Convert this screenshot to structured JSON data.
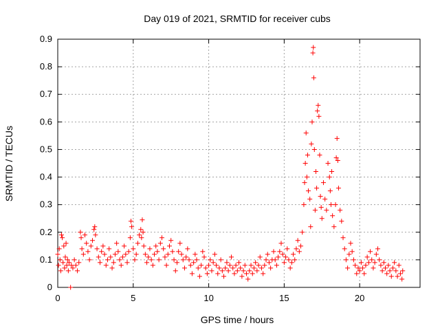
{
  "chart_data": {
    "type": "scatter",
    "title": "Day 019 of 2021, SRMTID for receiver cubs",
    "xlabel": "GPS time / hours",
    "ylabel": "SRMTID / TECUs",
    "xlim": [
      0,
      24
    ],
    "ylim": [
      0,
      0.9
    ],
    "xticks": [
      0,
      5,
      10,
      15,
      20
    ],
    "yticks": [
      0,
      0.1,
      0.2,
      0.3,
      0.4,
      0.5,
      0.6,
      0.7,
      0.8,
      0.9
    ],
    "xtick_labels": [
      "0",
      "5",
      "10",
      "15",
      "20"
    ],
    "ytick_labels": [
      "0",
      "0.1",
      "0.2",
      "0.3",
      "0.4",
      "0.5",
      "0.6",
      "0.7",
      "0.8",
      "0.9"
    ],
    "grid": true,
    "marker": "+",
    "color": "#ff0000",
    "series": [
      {
        "name": "SRMTID",
        "points": [
          [
            0.0,
            0.12
          ],
          [
            0.05,
            0.08
          ],
          [
            0.1,
            0.14
          ],
          [
            0.15,
            0.1
          ],
          [
            0.2,
            0.06
          ],
          [
            0.25,
            0.19
          ],
          [
            0.3,
            0.18
          ],
          [
            0.35,
            0.09
          ],
          [
            0.4,
            0.15
          ],
          [
            0.45,
            0.07
          ],
          [
            0.5,
            0.11
          ],
          [
            0.55,
            0.16
          ],
          [
            0.6,
            0.08
          ],
          [
            0.65,
            0.1
          ],
          [
            0.7,
            0.06
          ],
          [
            0.75,
            0.09
          ],
          [
            0.85,
            0.0
          ],
          [
            0.9,
            0.08
          ],
          [
            1.0,
            0.07
          ],
          [
            1.1,
            0.1
          ],
          [
            1.2,
            0.08
          ],
          [
            1.3,
            0.06
          ],
          [
            1.4,
            0.09
          ],
          [
            1.5,
            0.2
          ],
          [
            1.55,
            0.18
          ],
          [
            1.6,
            0.14
          ],
          [
            1.7,
            0.12
          ],
          [
            1.8,
            0.19
          ],
          [
            1.9,
            0.16
          ],
          [
            2.0,
            0.13
          ],
          [
            2.1,
            0.1
          ],
          [
            2.2,
            0.15
          ],
          [
            2.3,
            0.17
          ],
          [
            2.4,
            0.21
          ],
          [
            2.45,
            0.22
          ],
          [
            2.5,
            0.19
          ],
          [
            2.6,
            0.14
          ],
          [
            2.7,
            0.11
          ],
          [
            2.8,
            0.09
          ],
          [
            2.9,
            0.13
          ],
          [
            3.0,
            0.15
          ],
          [
            3.1,
            0.12
          ],
          [
            3.2,
            0.08
          ],
          [
            3.3,
            0.1
          ],
          [
            3.4,
            0.14
          ],
          [
            3.5,
            0.11
          ],
          [
            3.6,
            0.07
          ],
          [
            3.7,
            0.09
          ],
          [
            3.8,
            0.12
          ],
          [
            3.9,
            0.16
          ],
          [
            4.0,
            0.13
          ],
          [
            4.1,
            0.1
          ],
          [
            4.2,
            0.08
          ],
          [
            4.3,
            0.11
          ],
          [
            4.4,
            0.15
          ],
          [
            4.5,
            0.12
          ],
          [
            4.6,
            0.09
          ],
          [
            4.7,
            0.13
          ],
          [
            4.8,
            0.18
          ],
          [
            4.85,
            0.24
          ],
          [
            4.9,
            0.22
          ],
          [
            5.0,
            0.14
          ],
          [
            5.1,
            0.1
          ],
          [
            5.2,
            0.12
          ],
          [
            5.3,
            0.16
          ],
          [
            5.4,
            0.19
          ],
          [
            5.5,
            0.21
          ],
          [
            5.55,
            0.18
          ],
          [
            5.6,
            0.245
          ],
          [
            5.65,
            0.2
          ],
          [
            5.7,
            0.15
          ],
          [
            5.8,
            0.12
          ],
          [
            5.9,
            0.09
          ],
          [
            6.0,
            0.11
          ],
          [
            6.1,
            0.14
          ],
          [
            6.2,
            0.1
          ],
          [
            6.3,
            0.08
          ],
          [
            6.4,
            0.12
          ],
          [
            6.5,
            0.15
          ],
          [
            6.6,
            0.13
          ],
          [
            6.7,
            0.1
          ],
          [
            6.8,
            0.16
          ],
          [
            6.9,
            0.18
          ],
          [
            7.0,
            0.14
          ],
          [
            7.1,
            0.11
          ],
          [
            7.2,
            0.08
          ],
          [
            7.3,
            0.12
          ],
          [
            7.4,
            0.15
          ],
          [
            7.5,
            0.17
          ],
          [
            7.6,
            0.13
          ],
          [
            7.7,
            0.1
          ],
          [
            7.8,
            0.06
          ],
          [
            7.9,
            0.09
          ],
          [
            8.0,
            0.13
          ],
          [
            8.1,
            0.16
          ],
          [
            8.2,
            0.12
          ],
          [
            8.3,
            0.1
          ],
          [
            8.4,
            0.07
          ],
          [
            8.5,
            0.11
          ],
          [
            8.6,
            0.14
          ],
          [
            8.7,
            0.1
          ],
          [
            8.8,
            0.08
          ],
          [
            8.9,
            0.05
          ],
          [
            9.0,
            0.09
          ],
          [
            9.1,
            0.12
          ],
          [
            9.2,
            0.1
          ],
          [
            9.3,
            0.07
          ],
          [
            9.4,
            0.04
          ],
          [
            9.5,
            0.08
          ],
          [
            9.6,
            0.13
          ],
          [
            9.7,
            0.11
          ],
          [
            9.8,
            0.07
          ],
          [
            9.9,
            0.05
          ],
          [
            10.0,
            0.08
          ],
          [
            10.1,
            0.1
          ],
          [
            10.2,
            0.06
          ],
          [
            10.3,
            0.09
          ],
          [
            10.4,
            0.12
          ],
          [
            10.5,
            0.08
          ],
          [
            10.6,
            0.05
          ],
          [
            10.7,
            0.07
          ],
          [
            10.8,
            0.1
          ],
          [
            10.9,
            0.06
          ],
          [
            11.0,
            0.04
          ],
          [
            11.1,
            0.07
          ],
          [
            11.2,
            0.09
          ],
          [
            11.3,
            0.06
          ],
          [
            11.4,
            0.08
          ],
          [
            11.5,
            0.11
          ],
          [
            11.6,
            0.07
          ],
          [
            11.7,
            0.05
          ],
          [
            11.8,
            0.08
          ],
          [
            11.9,
            0.06
          ],
          [
            12.0,
            0.09
          ],
          [
            12.1,
            0.07
          ],
          [
            12.2,
            0.04
          ],
          [
            12.3,
            0.06
          ],
          [
            12.4,
            0.08
          ],
          [
            12.5,
            0.05
          ],
          [
            12.6,
            0.03
          ],
          [
            12.7,
            0.06
          ],
          [
            12.8,
            0.08
          ],
          [
            12.9,
            0.05
          ],
          [
            13.0,
            0.07
          ],
          [
            13.1,
            0.09
          ],
          [
            13.2,
            0.06
          ],
          [
            13.3,
            0.08
          ],
          [
            13.4,
            0.11
          ],
          [
            13.5,
            0.07
          ],
          [
            13.6,
            0.05
          ],
          [
            13.7,
            0.08
          ],
          [
            13.8,
            0.1
          ],
          [
            13.9,
            0.12
          ],
          [
            14.0,
            0.09
          ],
          [
            14.1,
            0.07
          ],
          [
            14.2,
            0.1
          ],
          [
            14.3,
            0.13
          ],
          [
            14.4,
            0.1
          ],
          [
            14.5,
            0.08
          ],
          [
            14.6,
            0.11
          ],
          [
            14.7,
            0.13
          ],
          [
            14.8,
            0.16
          ],
          [
            14.9,
            0.12
          ],
          [
            15.0,
            0.09
          ],
          [
            15.1,
            0.11
          ],
          [
            15.2,
            0.14
          ],
          [
            15.3,
            0.1
          ],
          [
            15.4,
            0.07
          ],
          [
            15.5,
            0.09
          ],
          [
            15.6,
            0.12
          ],
          [
            15.7,
            0.1
          ],
          [
            15.8,
            0.14
          ],
          [
            15.9,
            0.17
          ],
          [
            16.0,
            0.13
          ],
          [
            16.1,
            0.15
          ],
          [
            16.2,
            0.2
          ],
          [
            16.3,
            0.3
          ],
          [
            16.35,
            0.38
          ],
          [
            16.4,
            0.45
          ],
          [
            16.45,
            0.56
          ],
          [
            16.5,
            0.4
          ],
          [
            16.55,
            0.48
          ],
          [
            16.6,
            0.35
          ],
          [
            16.7,
            0.32
          ],
          [
            16.75,
            0.22
          ],
          [
            16.8,
            0.52
          ],
          [
            16.85,
            0.6
          ],
          [
            16.9,
            0.85
          ],
          [
            16.93,
            0.87
          ],
          [
            16.96,
            0.76
          ],
          [
            17.0,
            0.5
          ],
          [
            17.05,
            0.28
          ],
          [
            17.1,
            0.42
          ],
          [
            17.15,
            0.36
          ],
          [
            17.2,
            0.64
          ],
          [
            17.25,
            0.66
          ],
          [
            17.3,
            0.62
          ],
          [
            17.35,
            0.48
          ],
          [
            17.4,
            0.33
          ],
          [
            17.45,
            0.29
          ],
          [
            17.5,
            0.25
          ],
          [
            17.6,
            0.38
          ],
          [
            17.7,
            0.32
          ],
          [
            17.8,
            0.28
          ],
          [
            17.9,
            0.45
          ],
          [
            18.0,
            0.4
          ],
          [
            18.05,
            0.35
          ],
          [
            18.1,
            0.3
          ],
          [
            18.15,
            0.42
          ],
          [
            18.2,
            0.26
          ],
          [
            18.3,
            0.22
          ],
          [
            18.4,
            0.3
          ],
          [
            18.45,
            0.47
          ],
          [
            18.5,
            0.54
          ],
          [
            18.55,
            0.46
          ],
          [
            18.6,
            0.36
          ],
          [
            18.7,
            0.28
          ],
          [
            18.8,
            0.24
          ],
          [
            18.9,
            0.18
          ],
          [
            19.0,
            0.14
          ],
          [
            19.1,
            0.1
          ],
          [
            19.2,
            0.07
          ],
          [
            19.3,
            0.12
          ],
          [
            19.4,
            0.16
          ],
          [
            19.5,
            0.13
          ],
          [
            19.6,
            0.1
          ],
          [
            19.7,
            0.08
          ],
          [
            19.8,
            0.05
          ],
          [
            19.9,
            0.07
          ],
          [
            20.0,
            0.06
          ],
          [
            20.1,
            0.09
          ],
          [
            20.2,
            0.07
          ],
          [
            20.3,
            0.05
          ],
          [
            20.4,
            0.08
          ],
          [
            20.5,
            0.11
          ],
          [
            20.6,
            0.09
          ],
          [
            20.7,
            0.13
          ],
          [
            20.8,
            0.1
          ],
          [
            20.9,
            0.07
          ],
          [
            21.0,
            0.09
          ],
          [
            21.1,
            0.12
          ],
          [
            21.2,
            0.14
          ],
          [
            21.3,
            0.1
          ],
          [
            21.4,
            0.08
          ],
          [
            21.5,
            0.06
          ],
          [
            21.6,
            0.09
          ],
          [
            21.7,
            0.07
          ],
          [
            21.8,
            0.05
          ],
          [
            21.9,
            0.08
          ],
          [
            22.0,
            0.06
          ],
          [
            22.1,
            0.04
          ],
          [
            22.2,
            0.07
          ],
          [
            22.3,
            0.09
          ],
          [
            22.4,
            0.06
          ],
          [
            22.5,
            0.04
          ],
          [
            22.6,
            0.08
          ],
          [
            22.7,
            0.05
          ],
          [
            22.8,
            0.03
          ],
          [
            22.85,
            0.06
          ]
        ]
      }
    ]
  }
}
